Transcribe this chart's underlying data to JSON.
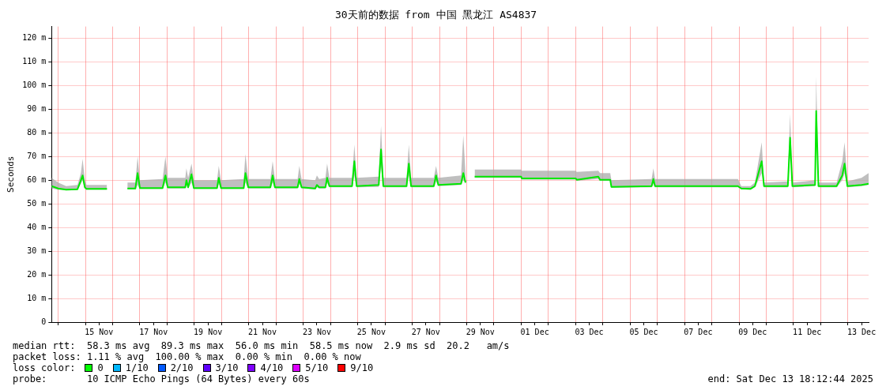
{
  "chart_data": {
    "type": "line",
    "title": "30天前的数据 from 中国 黑龙江 AS4837",
    "ylabel": "Seconds",
    "xlim": [
      "2025-11-13T18:12",
      "2025-12-13T18:12"
    ],
    "xticks": [
      {
        "value": "2025-11-14T00:00",
        "label": null
      },
      {
        "value": "2025-11-15T00:00",
        "label": null
      },
      {
        "value": "2025-11-15T12:00",
        "label": "15 Nov"
      },
      {
        "value": "2025-11-16T00:00",
        "label": null
      },
      {
        "value": "2025-11-17T00:00",
        "label": null
      },
      {
        "value": "2025-11-17T12:00",
        "label": "17 Nov"
      },
      {
        "value": "2025-11-18T00:00",
        "label": null
      },
      {
        "value": "2025-11-19T00:00",
        "label": null
      },
      {
        "value": "2025-11-19T12:00",
        "label": "19 Nov"
      },
      {
        "value": "2025-11-20T00:00",
        "label": null
      },
      {
        "value": "2025-11-21T00:00",
        "label": null
      },
      {
        "value": "2025-11-21T12:00",
        "label": "21 Nov"
      },
      {
        "value": "2025-11-22T00:00",
        "label": null
      },
      {
        "value": "2025-11-23T00:00",
        "label": null
      },
      {
        "value": "2025-11-23T12:00",
        "label": "23 Nov"
      },
      {
        "value": "2025-11-24T00:00",
        "label": null
      },
      {
        "value": "2025-11-25T00:00",
        "label": null
      },
      {
        "value": "2025-11-25T12:00",
        "label": "25 Nov"
      },
      {
        "value": "2025-11-26T00:00",
        "label": null
      },
      {
        "value": "2025-11-27T00:00",
        "label": null
      },
      {
        "value": "2025-11-27T12:00",
        "label": "27 Nov"
      },
      {
        "value": "2025-11-28T00:00",
        "label": null
      },
      {
        "value": "2025-11-29T00:00",
        "label": null
      },
      {
        "value": "2025-11-29T12:00",
        "label": "29 Nov"
      },
      {
        "value": "2025-11-30T00:00",
        "label": null
      },
      {
        "value": "2025-12-01T00:00",
        "label": null
      },
      {
        "value": "2025-12-01T12:00",
        "label": "01 Dec"
      },
      {
        "value": "2025-12-02T00:00",
        "label": null
      },
      {
        "value": "2025-12-03T00:00",
        "label": null
      },
      {
        "value": "2025-12-03T12:00",
        "label": "03 Dec"
      },
      {
        "value": "2025-12-04T00:00",
        "label": null
      },
      {
        "value": "2025-12-05T00:00",
        "label": null
      },
      {
        "value": "2025-12-05T12:00",
        "label": "05 Dec"
      },
      {
        "value": "2025-12-06T00:00",
        "label": null
      },
      {
        "value": "2025-12-07T00:00",
        "label": null
      },
      {
        "value": "2025-12-07T12:00",
        "label": "07 Dec"
      },
      {
        "value": "2025-12-08T00:00",
        "label": null
      },
      {
        "value": "2025-12-09T00:00",
        "label": null
      },
      {
        "value": "2025-12-09T12:00",
        "label": "09 Dec"
      },
      {
        "value": "2025-12-10T00:00",
        "label": null
      },
      {
        "value": "2025-12-11T00:00",
        "label": null
      },
      {
        "value": "2025-12-11T12:00",
        "label": "11 Dec"
      },
      {
        "value": "2025-12-12T00:00",
        "label": null
      },
      {
        "value": "2025-12-13T00:00",
        "label": null
      },
      {
        "value": "2025-12-13T12:00",
        "label": "13 Dec"
      }
    ],
    "ylim": [
      0,
      125
    ],
    "yticks": [
      0,
      {
        "value": 10,
        "label": "10 m"
      },
      {
        "value": 20,
        "label": "20 m"
      },
      {
        "value": 30,
        "label": "30 m"
      },
      {
        "value": 40,
        "label": "40 m"
      },
      {
        "value": 50,
        "label": "50 m"
      },
      {
        "value": 60,
        "label": "60 m"
      },
      {
        "value": 70,
        "label": "70 m"
      },
      {
        "value": 80,
        "label": "80 m"
      },
      {
        "value": 90,
        "label": "90 m"
      },
      {
        "value": 100,
        "label": "100 m"
      },
      {
        "value": 110,
        "label": "110 m"
      },
      {
        "value": 120,
        "label": "120 m"
      }
    ],
    "grid": true,
    "legend": false,
    "marker": "none",
    "line_style": "solid",
    "series": [
      {
        "color": "#00e800",
        "x": [
          "2025-11-13T18:12",
          "2025-11-14T00:00",
          "2025-11-14T07:00",
          "2025-11-14T17:00",
          "2025-11-14T20:00",
          "2025-11-14T21:30",
          "2025-11-14T23:30",
          "2025-11-15T01:00",
          "2025-11-15T19:00",
          "2025-11-15T20:00",
          "2025-11-16T13:00",
          "2025-11-16T20:00",
          "2025-11-16T22:00",
          "2025-11-17T00:00",
          "2025-11-17T20:00",
          "2025-11-17T22:30",
          "2025-11-18T00:30",
          "2025-11-18T16:00",
          "2025-11-18T17:00",
          "2025-11-18T18:30",
          "2025-11-18T21:30",
          "2025-11-18T23:30",
          "2025-11-19T20:00",
          "2025-11-19T21:30",
          "2025-11-19T23:30",
          "2025-11-20T19:30",
          "2025-11-20T21:00",
          "2025-11-20T23:30",
          "2025-11-21T19:00",
          "2025-11-21T21:00",
          "2025-11-21T23:00",
          "2025-11-22T19:00",
          "2025-11-22T20:30",
          "2025-11-22T22:30",
          "2025-11-23T10:30",
          "2025-11-23T12:00",
          "2025-11-23T14:00",
          "2025-11-23T19:30",
          "2025-11-23T21:00",
          "2025-11-23T23:00",
          "2025-11-24T19:00",
          "2025-11-24T21:00",
          "2025-11-24T23:00",
          "2025-11-25T18:30",
          "2025-11-25T20:30",
          "2025-11-25T22:30",
          "2025-11-26T19:00",
          "2025-11-26T21:00",
          "2025-11-26T23:00",
          "2025-11-27T19:00",
          "2025-11-27T21:00",
          "2025-11-27T23:00",
          "2025-11-28T19:00",
          "2025-11-28T21:00",
          "2025-11-28T23:00",
          "2025-11-29T02:00",
          "2025-11-29T07:00",
          "2025-12-01T00:00",
          "2025-12-01T00:30",
          "2025-12-03T00:00",
          "2025-12-03T01:00",
          "2025-12-03T20:00",
          "2025-12-03T21:30",
          "2025-12-04T06:30",
          "2025-12-04T07:30",
          "2025-12-05T19:00",
          "2025-12-05T20:30",
          "2025-12-05T22:00",
          "2025-12-08T23:00",
          "2025-12-09T02:00",
          "2025-12-09T10:00",
          "2025-12-09T14:00",
          "2025-12-09T20:00",
          "2025-12-09T22:00",
          "2025-12-10T19:00",
          "2025-12-10T21:00",
          "2025-12-10T23:00",
          "2025-12-11T19:00",
          "2025-12-11T20:00",
          "2025-12-11T22:00",
          "2025-12-12T14:00",
          "2025-12-12T19:00",
          "2025-12-12T21:00",
          "2025-12-12T23:30",
          "2025-12-13T12:00",
          "2025-12-13T18:12"
        ],
        "values": [
          57.5,
          56.5,
          56,
          56.2,
          60,
          62,
          57,
          56.3,
          56.3,
          null,
          56.5,
          56.5,
          63,
          56.7,
          56.7,
          62,
          57,
          57,
          60,
          57,
          62.5,
          56.7,
          56.7,
          61,
          56.7,
          56.7,
          63,
          57,
          57,
          62,
          57,
          57,
          60.5,
          57,
          56.5,
          58,
          57,
          57,
          61,
          57.5,
          57.5,
          68,
          57.5,
          58,
          73,
          57.5,
          57.5,
          67,
          57.5,
          57.5,
          62,
          58,
          58.5,
          63,
          59,
          null,
          61.5,
          61.5,
          60.8,
          60.8,
          60.2,
          61.5,
          60.2,
          60.2,
          57.2,
          57.5,
          60.5,
          57.5,
          57.5,
          56.5,
          56.3,
          57.5,
          68,
          57.5,
          57.5,
          78,
          57.5,
          58,
          89.3,
          57.5,
          57.5,
          62,
          67,
          57.5,
          58,
          58.5
        ],
        "upper": [
          61,
          59,
          57.5,
          58,
          63,
          69,
          60,
          58,
          58,
          null,
          59,
          59,
          70,
          60,
          60.5,
          70,
          61,
          61,
          65,
          61,
          67,
          60,
          60,
          66,
          60,
          60.5,
          71,
          60.5,
          60.5,
          68,
          60.5,
          60.5,
          66,
          60.5,
          60,
          62,
          60.5,
          61,
          67,
          61,
          61,
          75,
          61,
          61.5,
          83,
          61,
          61,
          75,
          61,
          61,
          66,
          61,
          62,
          79,
          62.5,
          null,
          64.5,
          64.5,
          64,
          64,
          63.5,
          64,
          63,
          63,
          60,
          60.5,
          65,
          60.5,
          60.5,
          57.5,
          57.5,
          59,
          76,
          59,
          59.5,
          88,
          59,
          60,
          104,
          59,
          59,
          68,
          76,
          59.5,
          61,
          63
        ],
        "lower": [
          56.5,
          56,
          55.8,
          56,
          58.5,
          60,
          56.3,
          56,
          56,
          null,
          56.2,
          56.2,
          58,
          56.3,
          56.3,
          59,
          56.5,
          56.5,
          58,
          56.5,
          59,
          56.3,
          56.3,
          58.5,
          56.3,
          56.3,
          59,
          56.5,
          56.5,
          59,
          56.5,
          56.5,
          58.5,
          56.5,
          56.2,
          57,
          56.5,
          56.5,
          59,
          57,
          57,
          62,
          57,
          57.2,
          66,
          57,
          57,
          62,
          57,
          57,
          59.5,
          57.5,
          58,
          60,
          58.5,
          null,
          61,
          61,
          60.3,
          60.3,
          59.8,
          60.5,
          59.8,
          59.8,
          56.8,
          57,
          58.5,
          57,
          57,
          56.2,
          56,
          57,
          63,
          57,
          57,
          70,
          57,
          57.5,
          80,
          57,
          57,
          60,
          63,
          57,
          57.5,
          58
        ]
      }
    ],
    "annotations": [
      "median rtt:  58.3 ms avg  89.3 ms max  56.0 ms min  58.5 ms now  2.9 ms sd  20.2   am/s",
      "packet loss: 1.11 % avg  100.00 % max  0.00 % min  0.00 % now",
      "loss color:",
      "0",
      "1/10",
      "2/10",
      "3/10",
      "4/10",
      "5/10",
      "9/10",
      "probe:       10 ICMP Echo Pings (64 Bytes) every 60s",
      "end: Sat Dec 13 18:12:44 2025"
    ]
  }
}
